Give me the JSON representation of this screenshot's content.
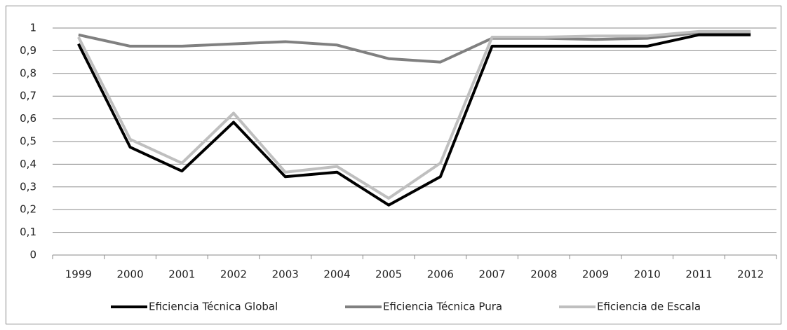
{
  "chart_data": {
    "type": "line",
    "categories": [
      "1999",
      "2000",
      "2001",
      "2002",
      "2003",
      "2004",
      "2005",
      "2006",
      "2007",
      "2008",
      "2009",
      "2010",
      "2011",
      "2012"
    ],
    "series": [
      {
        "name": "Eficiencia Técnica Global",
        "color": "#000000",
        "values": [
          0.93,
          0.475,
          0.37,
          0.585,
          0.345,
          0.365,
          0.22,
          0.345,
          0.92,
          0.92,
          0.92,
          0.92,
          0.97,
          0.97
        ]
      },
      {
        "name": "Eficiencia Técnica Pura",
        "color": "#808080",
        "values": [
          0.97,
          0.92,
          0.92,
          0.93,
          0.94,
          0.925,
          0.865,
          0.85,
          0.955,
          0.955,
          0.95,
          0.955,
          0.98,
          0.98
        ]
      },
      {
        "name": "Eficiencia de Escala",
        "color": "#bfbfbf",
        "values": [
          0.96,
          0.51,
          0.405,
          0.625,
          0.365,
          0.39,
          0.25,
          0.405,
          0.96,
          0.96,
          0.965,
          0.965,
          0.985,
          0.985
        ]
      }
    ],
    "ylim": [
      0,
      1
    ],
    "yticks": [
      0,
      {
        "value": 0.1,
        "label": "0,1"
      },
      {
        "value": 0.2,
        "label": "0,2"
      },
      {
        "value": 0.3,
        "label": "0,3"
      },
      {
        "value": 0.4,
        "label": "0,4"
      },
      {
        "value": 0.5,
        "label": "0,5"
      },
      {
        "value": 0.6,
        "label": "0,6"
      },
      {
        "value": 0.7,
        "label": "0,7"
      },
      {
        "value": 0.8,
        "label": "0,8"
      },
      {
        "value": 0.9,
        "label": "0,9"
      },
      1
    ],
    "grid": true,
    "legend": "bottom"
  }
}
